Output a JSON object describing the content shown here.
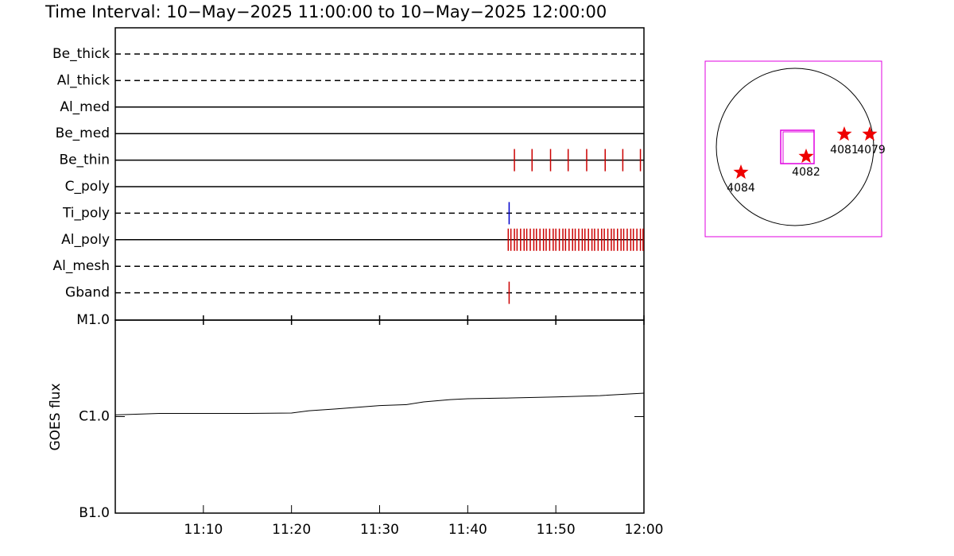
{
  "chart_data": [
    {
      "type": "raster",
      "title": "Time Interval: 10−May−2025 11:00:00 to 10−May−2025 12:00:00",
      "xlim": [
        0,
        60
      ],
      "rows": [
        {
          "name": "Be_thick",
          "line": "dashed",
          "color": "#cc0000",
          "times": []
        },
        {
          "name": "Al_thick",
          "line": "dashed",
          "color": "#cc0000",
          "times": []
        },
        {
          "name": "Al_med",
          "line": "solid",
          "color": "#cc0000",
          "times": []
        },
        {
          "name": "Be_med",
          "line": "solid",
          "color": "#cc0000",
          "times": []
        },
        {
          "name": "Be_thin",
          "line": "solid",
          "color": "#cc0000",
          "times": [
            45.3,
            47.3,
            49.4,
            51.4,
            53.5,
            55.6,
            57.6,
            59.6
          ]
        },
        {
          "name": "C_poly",
          "line": "solid",
          "color": "#cc0000",
          "times": []
        },
        {
          "name": "Ti_poly",
          "line": "dashed",
          "color": "#0000cc",
          "times": [
            44.7
          ]
        },
        {
          "name": "Al_poly",
          "line": "solid",
          "color": "#cc0000",
          "times": [
            44.6,
            44.9,
            45.3,
            45.6,
            46.0,
            46.4,
            46.7,
            47.1,
            47.5,
            47.8,
            48.2,
            48.6,
            48.9,
            49.3,
            49.7,
            50.0,
            50.4,
            50.8,
            51.1,
            51.5,
            51.9,
            52.2,
            52.6,
            53.0,
            53.3,
            53.7,
            54.1,
            54.4,
            54.8,
            55.2,
            55.5,
            55.9,
            56.3,
            56.6,
            57.0,
            57.4,
            57.7,
            58.1,
            58.5,
            58.8,
            59.2,
            59.6,
            59.9
          ]
        },
        {
          "name": "Al_mesh",
          "line": "dashed",
          "color": "#cc0000",
          "times": []
        },
        {
          "name": "Gband",
          "line": "dashed",
          "color": "#cc0000",
          "times": [
            44.7
          ]
        }
      ]
    },
    {
      "type": "line",
      "y_label": "GOES flux",
      "color": "#000000",
      "log_scale": true,
      "x": [
        0,
        5,
        10,
        15,
        20,
        22,
        25,
        30,
        33,
        35,
        38,
        40,
        45,
        50,
        55,
        60
      ],
      "values": [
        1.04e-06,
        1.08e-06,
        1.08e-06,
        1.08e-06,
        1.09e-06,
        1.15e-06,
        1.2e-06,
        1.3e-06,
        1.33e-06,
        1.42e-06,
        1.5e-06,
        1.53e-06,
        1.56e-06,
        1.6e-06,
        1.65e-06,
        1.75e-06
      ],
      "xlim": [
        0,
        60
      ],
      "xticks": [
        {
          "value": 10,
          "label": "11:10"
        },
        {
          "value": 20,
          "label": "11:20"
        },
        {
          "value": 30,
          "label": "11:30"
        },
        {
          "value": 40,
          "label": "11:40"
        },
        {
          "value": 50,
          "label": "11:50"
        },
        {
          "value": 60,
          "label": "12:00"
        }
      ],
      "ylim": [
        1e-07,
        1e-05
      ],
      "yticks": [
        {
          "value": 1e-07,
          "label": "B1.0"
        },
        {
          "value": 1e-06,
          "label": "C1.0"
        },
        {
          "value": 1e-05,
          "label": "M1.0"
        }
      ]
    }
  ],
  "sun_map": {
    "regions": [
      "4084",
      "4082",
      "4081",
      "4079"
    ]
  }
}
